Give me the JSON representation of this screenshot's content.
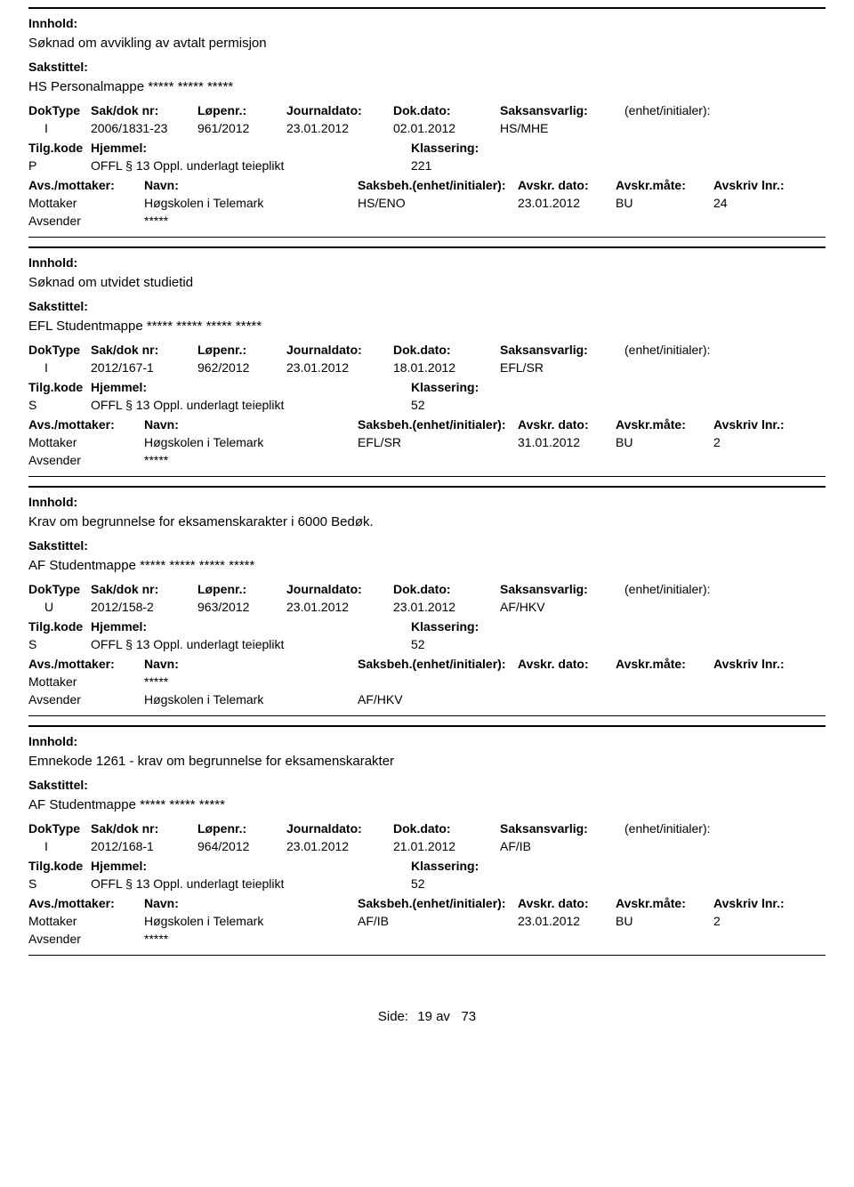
{
  "labels": {
    "innhold": "Innhold:",
    "sakstittel": "Sakstittel:",
    "doktype": "DokType",
    "sakdoknr": "Sak/dok nr:",
    "lopenr": "Løpenr.:",
    "journaldato": "Journaldato:",
    "dokdato": "Dok.dato:",
    "saksansvarlig": "Saksansvarlig:",
    "enhetinit": "(enhet/initialer):",
    "tilgkode": "Tilg.kode",
    "hjemmel": "Hjemmel:",
    "klassering": "Klassering:",
    "avsmottaker": "Avs./mottaker:",
    "navn": "Navn:",
    "saksbeh": "Saksbeh.",
    "saksbeh_enhet": "(enhet/initialer):",
    "avskrdato": "Avskr. dato:",
    "avskrmate": "Avskr.måte:",
    "avskrivlnr": "Avskriv lnr.:",
    "mottaker": "Mottaker",
    "avsender": "Avsender",
    "side": "Side:",
    "av": "av"
  },
  "footer": {
    "page": "19",
    "total": "73"
  },
  "records": [
    {
      "innhold": "Søknad om avvikling av avtalt permisjon",
      "sakstittel": "HS Personalmappe ***** ***** *****",
      "doktype": "I",
      "sakdoknr": "2006/1831-23",
      "lopenr": "961/2012",
      "journaldato": "23.01.2012",
      "dokdato": "02.01.2012",
      "saksansvarlig": "HS/MHE",
      "tilgkode": "P",
      "hjemmel": "OFFL § 13 Oppl. underlagt teieplikt",
      "klassering": "221",
      "parties": [
        {
          "role": "Mottaker",
          "navn": "Høgskolen i Telemark",
          "saksbeh": "HS/ENO",
          "avskrdato": "23.01.2012",
          "avskrmate": "BU",
          "avskrlnr": "24"
        },
        {
          "role": "Avsender",
          "navn": "*****",
          "saksbeh": "",
          "avskrdato": "",
          "avskrmate": "",
          "avskrlnr": ""
        }
      ]
    },
    {
      "innhold": "Søknad om utvidet studietid",
      "sakstittel": "EFL Studentmappe ***** ***** ***** *****",
      "doktype": "I",
      "sakdoknr": "2012/167-1",
      "lopenr": "962/2012",
      "journaldato": "23.01.2012",
      "dokdato": "18.01.2012",
      "saksansvarlig": "EFL/SR",
      "tilgkode": "S",
      "hjemmel": "OFFL § 13 Oppl. underlagt teieplikt",
      "klassering": "52",
      "parties": [
        {
          "role": "Mottaker",
          "navn": "Høgskolen i Telemark",
          "saksbeh": "EFL/SR",
          "avskrdato": "31.01.2012",
          "avskrmate": "BU",
          "avskrlnr": "2"
        },
        {
          "role": "Avsender",
          "navn": "*****",
          "saksbeh": "",
          "avskrdato": "",
          "avskrmate": "",
          "avskrlnr": ""
        }
      ]
    },
    {
      "innhold": "Krav om begrunnelse for eksamenskarakter i 6000 Bedøk.",
      "sakstittel": "AF Studentmappe ***** ***** ***** *****",
      "doktype": "U",
      "sakdoknr": "2012/158-2",
      "lopenr": "963/2012",
      "journaldato": "23.01.2012",
      "dokdato": "23.01.2012",
      "saksansvarlig": "AF/HKV",
      "tilgkode": "S",
      "hjemmel": "OFFL § 13 Oppl. underlagt teieplikt",
      "klassering": "52",
      "parties": [
        {
          "role": "Mottaker",
          "navn": "*****",
          "saksbeh": "",
          "avskrdato": "",
          "avskrmate": "",
          "avskrlnr": ""
        },
        {
          "role": "Avsender",
          "navn": "Høgskolen i Telemark",
          "saksbeh": "AF/HKV",
          "avskrdato": "",
          "avskrmate": "",
          "avskrlnr": ""
        }
      ]
    },
    {
      "innhold": "Emnekode 1261 - krav om begrunnelse for eksamenskarakter",
      "sakstittel": "AF Studentmappe ***** ***** *****",
      "doktype": "I",
      "sakdoknr": "2012/168-1",
      "lopenr": "964/2012",
      "journaldato": "23.01.2012",
      "dokdato": "21.01.2012",
      "saksansvarlig": "AF/IB",
      "tilgkode": "S",
      "hjemmel": "OFFL § 13 Oppl. underlagt teieplikt",
      "klassering": "52",
      "parties": [
        {
          "role": "Mottaker",
          "navn": "Høgskolen i Telemark",
          "saksbeh": "AF/IB",
          "avskrdato": "23.01.2012",
          "avskrmate": "BU",
          "avskrlnr": "2"
        },
        {
          "role": "Avsender",
          "navn": "*****",
          "saksbeh": "",
          "avskrdato": "",
          "avskrmate": "",
          "avskrlnr": ""
        }
      ]
    }
  ]
}
